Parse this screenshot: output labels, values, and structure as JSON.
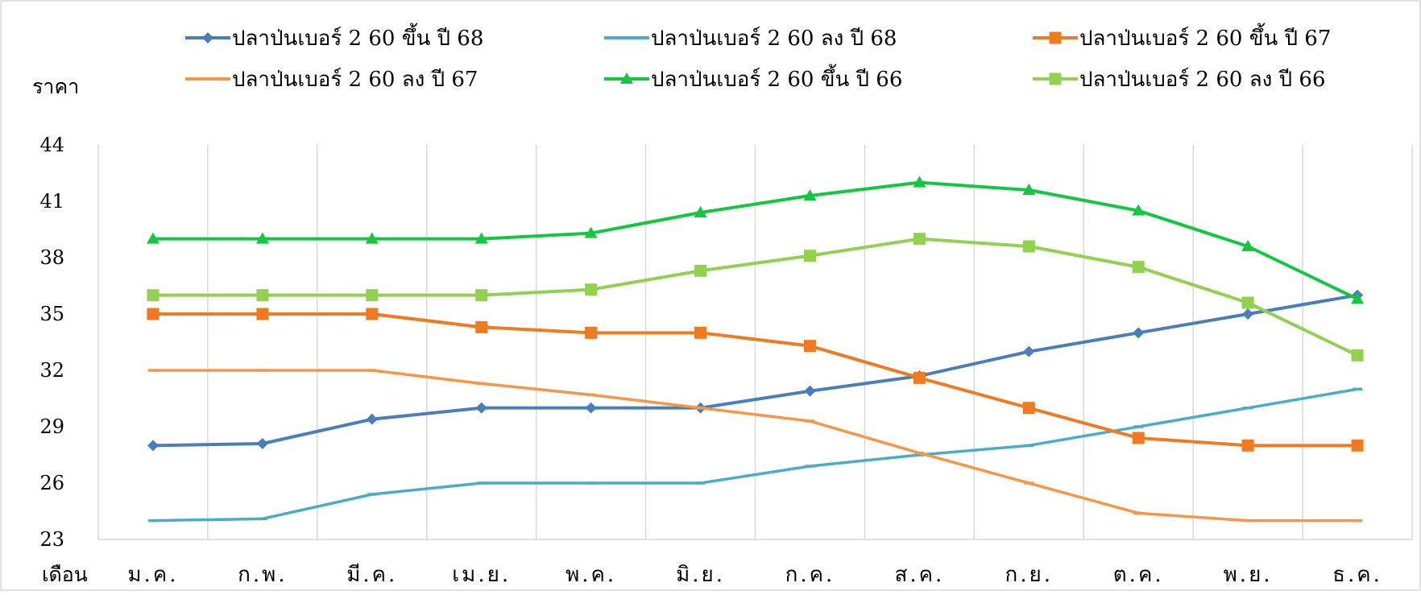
{
  "chart_data": {
    "type": "line",
    "ylabel": "ราคา",
    "xlabel": "เดือน",
    "ylim": [
      23,
      44
    ],
    "yticks": [
      23,
      26,
      29,
      32,
      35,
      38,
      41,
      44
    ],
    "grid": "vertical",
    "legend_position": "top",
    "categories": [
      "ม.ค.",
      "ก.พ.",
      "มี.ค.",
      "เม.ย.",
      "พ.ค.",
      "มิ.ย.",
      "ก.ค.",
      "ส.ค.",
      "ก.ย.",
      "ต.ค.",
      "พ.ย.",
      "ธ.ค."
    ],
    "series": [
      {
        "name": "ปลาป่นเบอร์ 2 60 ขึ้น ปี 68",
        "color": "#4a7ebb",
        "marker": "diamond",
        "values": [
          28.0,
          28.1,
          29.4,
          30.0,
          30.0,
          30.0,
          30.9,
          31.7,
          33.0,
          34.0,
          35.0,
          36.0
        ]
      },
      {
        "name": "ปลาป่นเบอร์ 2 60 ลง ปี 68",
        "color": "#4bacc6",
        "marker": "dash",
        "values": [
          24.0,
          24.1,
          25.4,
          26.0,
          26.0,
          26.0,
          26.9,
          27.5,
          28.0,
          29.0,
          30.0,
          31.0
        ]
      },
      {
        "name": "ปลาป่นเบอร์ 2 60 ขึ้น ปี 67",
        "color": "#f07a21",
        "marker": "square",
        "values": [
          35.0,
          35.0,
          35.0,
          34.3,
          34.0,
          34.0,
          33.3,
          31.6,
          30.0,
          28.4,
          28.0,
          28.0
        ]
      },
      {
        "name": "ปลาป่นเบอร์ 2 60 ลง ปี 67",
        "color": "#f79646",
        "marker": "dash",
        "values": [
          32.0,
          32.0,
          32.0,
          31.3,
          30.7,
          30.0,
          29.3,
          27.6,
          26.0,
          24.4,
          24.0,
          24.0
        ]
      },
      {
        "name": "ปลาป่นเบอร์ 2 60 ขึ้น ปี 66",
        "color": "#13c740",
        "marker": "triangle",
        "values": [
          39.0,
          39.0,
          39.0,
          39.0,
          39.3,
          40.4,
          41.3,
          42.0,
          41.6,
          40.5,
          38.6,
          35.8
        ]
      },
      {
        "name": "ปลาป่นเบอร์ 2 60 ลง ปี 66",
        "color": "#92d050",
        "marker": "square",
        "values": [
          36.0,
          36.0,
          36.0,
          36.0,
          36.3,
          37.3,
          38.1,
          39.0,
          38.6,
          37.5,
          35.6,
          32.8
        ]
      }
    ]
  }
}
